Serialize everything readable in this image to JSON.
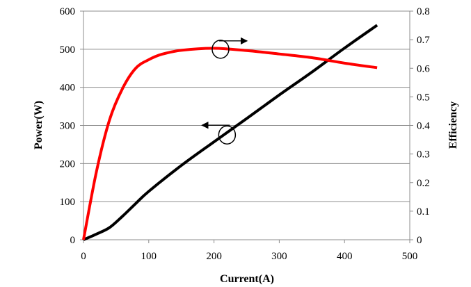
{
  "chart_data": {
    "type": "line",
    "title": "",
    "xlabel": "Current(A)",
    "ylabel": "Power(W)",
    "y2label": "Efficiency",
    "xlim": [
      0,
      500
    ],
    "ylim": [
      0,
      600
    ],
    "y2lim": [
      0,
      0.8
    ],
    "x_ticks": [
      "0",
      "100",
      "200",
      "300",
      "400",
      "500"
    ],
    "y_ticks": [
      "0",
      "100",
      "200",
      "300",
      "400",
      "500",
      "600"
    ],
    "y2_ticks": [
      "0",
      "0.1",
      "0.2",
      "0.3",
      "0.4",
      "0.5",
      "0.6",
      "0.7",
      "0.8"
    ],
    "grid": "horizontal",
    "series": [
      {
        "axis": "left",
        "color": "#000000",
        "x": [
          0,
          20,
          40,
          60,
          80,
          100,
          150,
          200,
          250,
          300,
          350,
          400,
          450
        ],
        "values": [
          0,
          15,
          32,
          62,
          95,
          127,
          195,
          257,
          318,
          380,
          440,
          503,
          563
        ]
      },
      {
        "axis": "right",
        "color": "#ff0000",
        "x": [
          0,
          20,
          40,
          60,
          80,
          100,
          120,
          150,
          200,
          250,
          300,
          350,
          400,
          450
        ],
        "values": [
          0,
          0.24,
          0.42,
          0.53,
          0.6,
          0.63,
          0.649,
          0.663,
          0.67,
          0.662,
          0.65,
          0.637,
          0.618,
          0.602
        ]
      }
    ],
    "annotations": [
      {
        "target": "right",
        "x": 210,
        "y": 500,
        "arrow": "right"
      },
      {
        "target": "left",
        "x": 220,
        "y": 275,
        "arrow": "left"
      }
    ]
  }
}
